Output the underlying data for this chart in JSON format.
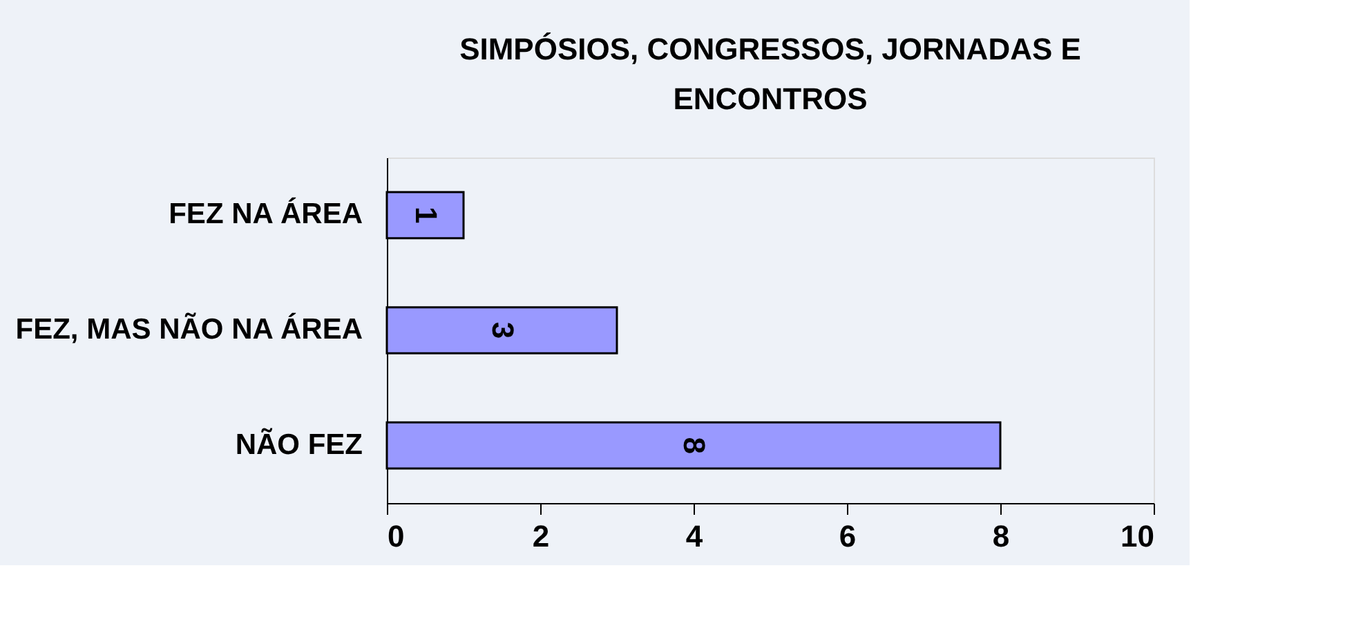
{
  "chart_data": {
    "type": "bar",
    "orientation": "horizontal",
    "title": "SIMPÓSIOS, CONGRESSOS, JORNADAS E\nENCONTROS",
    "categories": [
      "FEZ NA ÁREA",
      "FEZ, MAS NÃO NA ÁREA",
      "NÃO FEZ"
    ],
    "values": [
      1,
      3,
      8
    ],
    "color": "#9999ff",
    "xlim": [
      0,
      10
    ],
    "xticks": [
      0,
      2,
      4,
      6,
      8,
      10
    ],
    "grid": false,
    "data_labels": true
  }
}
